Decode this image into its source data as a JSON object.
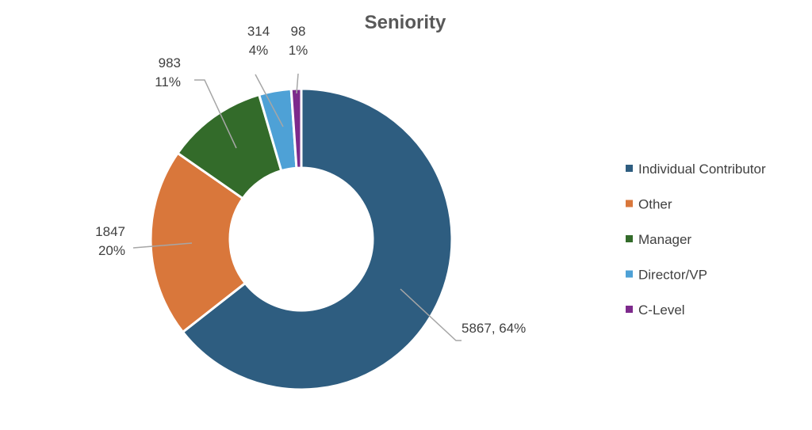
{
  "chart_data": {
    "type": "pie",
    "title": "Seniority",
    "categories": [
      "Individual Contributor",
      "Other",
      "Manager",
      "Director/VP",
      "C-Level"
    ],
    "values": [
      5867,
      1847,
      983,
      314,
      98
    ],
    "percent_labels": [
      "64%",
      "20%",
      "11%",
      "4%",
      "1%"
    ],
    "data_labels": [
      "5867, 64%",
      "1847\n20%",
      "983\n11%",
      "314\n4%",
      "98\n1%"
    ],
    "colors": [
      "#2e5d80",
      "#d9773b",
      "#336b2a",
      "#4ea1d6",
      "#7d2a8c"
    ],
    "donut": true,
    "legend": "right"
  }
}
